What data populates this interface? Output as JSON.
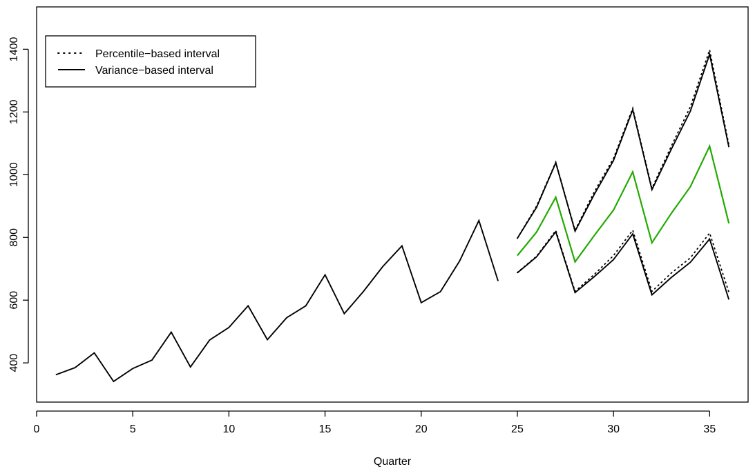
{
  "chart_data": {
    "type": "line",
    "title": "",
    "xlabel": "Quarter",
    "ylabel": "",
    "xlim": [
      0,
      37
    ],
    "ylim": [
      275,
      1535
    ],
    "x_ticks": [
      0,
      5,
      10,
      15,
      20,
      25,
      30,
      35
    ],
    "y_ticks": [
      400,
      600,
      800,
      1000,
      1200,
      1400
    ],
    "legend": {
      "position": "top-left",
      "entries": [
        {
          "label": "Percentile−based interval",
          "style": "dotted"
        },
        {
          "label": "Variance−based interval",
          "style": "solid"
        }
      ]
    },
    "series": [
      {
        "role": "observed",
        "color": "#000000",
        "style": "solid",
        "x": [
          1,
          2,
          3,
          4,
          5,
          6,
          7,
          8,
          9,
          10,
          11,
          12,
          13,
          14,
          15,
          16,
          17,
          18,
          19,
          20,
          21,
          22,
          23,
          24
        ],
        "values": [
          362,
          385,
          432,
          341,
          382,
          409,
          498,
          387,
          473,
          513,
          582,
          474,
          544,
          582,
          681,
          557,
          628,
          707,
          773,
          592,
          627,
          725,
          854,
          661
        ]
      },
      {
        "role": "forecast",
        "color": "#22aa00",
        "style": "solid",
        "x": [
          25,
          26,
          27,
          28,
          29,
          30,
          31,
          32,
          33,
          34,
          35,
          36
        ],
        "values": [
          742,
          817,
          928,
          722,
          806,
          887,
          1009,
          783,
          876,
          962,
          1091,
          845
        ]
      },
      {
        "role": "variance-upper",
        "color": "#000000",
        "style": "solid",
        "x": [
          25,
          26,
          27,
          28,
          29,
          30,
          31,
          32,
          33,
          34,
          35,
          36
        ],
        "values": [
          797,
          896,
          1038,
          820,
          937,
          1045,
          1207,
          952,
          1080,
          1203,
          1384,
          1088
        ]
      },
      {
        "role": "variance-lower",
        "color": "#000000",
        "style": "solid",
        "x": [
          25,
          26,
          27,
          28,
          29,
          30,
          31,
          32,
          33,
          34,
          35,
          36
        ],
        "values": [
          687,
          738,
          818,
          624,
          675,
          729,
          811,
          617,
          672,
          721,
          795,
          602
        ]
      },
      {
        "role": "percentile-upper",
        "color": "#000000",
        "style": "dotted",
        "x": [
          25,
          26,
          27,
          28,
          29,
          30,
          31,
          32,
          33,
          34,
          35,
          36
        ],
        "values": [
          797,
          900,
          1040,
          823,
          945,
          1052,
          1212,
          957,
          1090,
          1217,
          1398,
          1095
        ]
      },
      {
        "role": "percentile-lower",
        "color": "#000000",
        "style": "dotted",
        "x": [
          25,
          26,
          27,
          28,
          29,
          30,
          31,
          32,
          33,
          34,
          35,
          36
        ],
        "values": [
          688,
          740,
          822,
          628,
          682,
          742,
          823,
          628,
          686,
          735,
          814,
          625
        ]
      }
    ]
  }
}
